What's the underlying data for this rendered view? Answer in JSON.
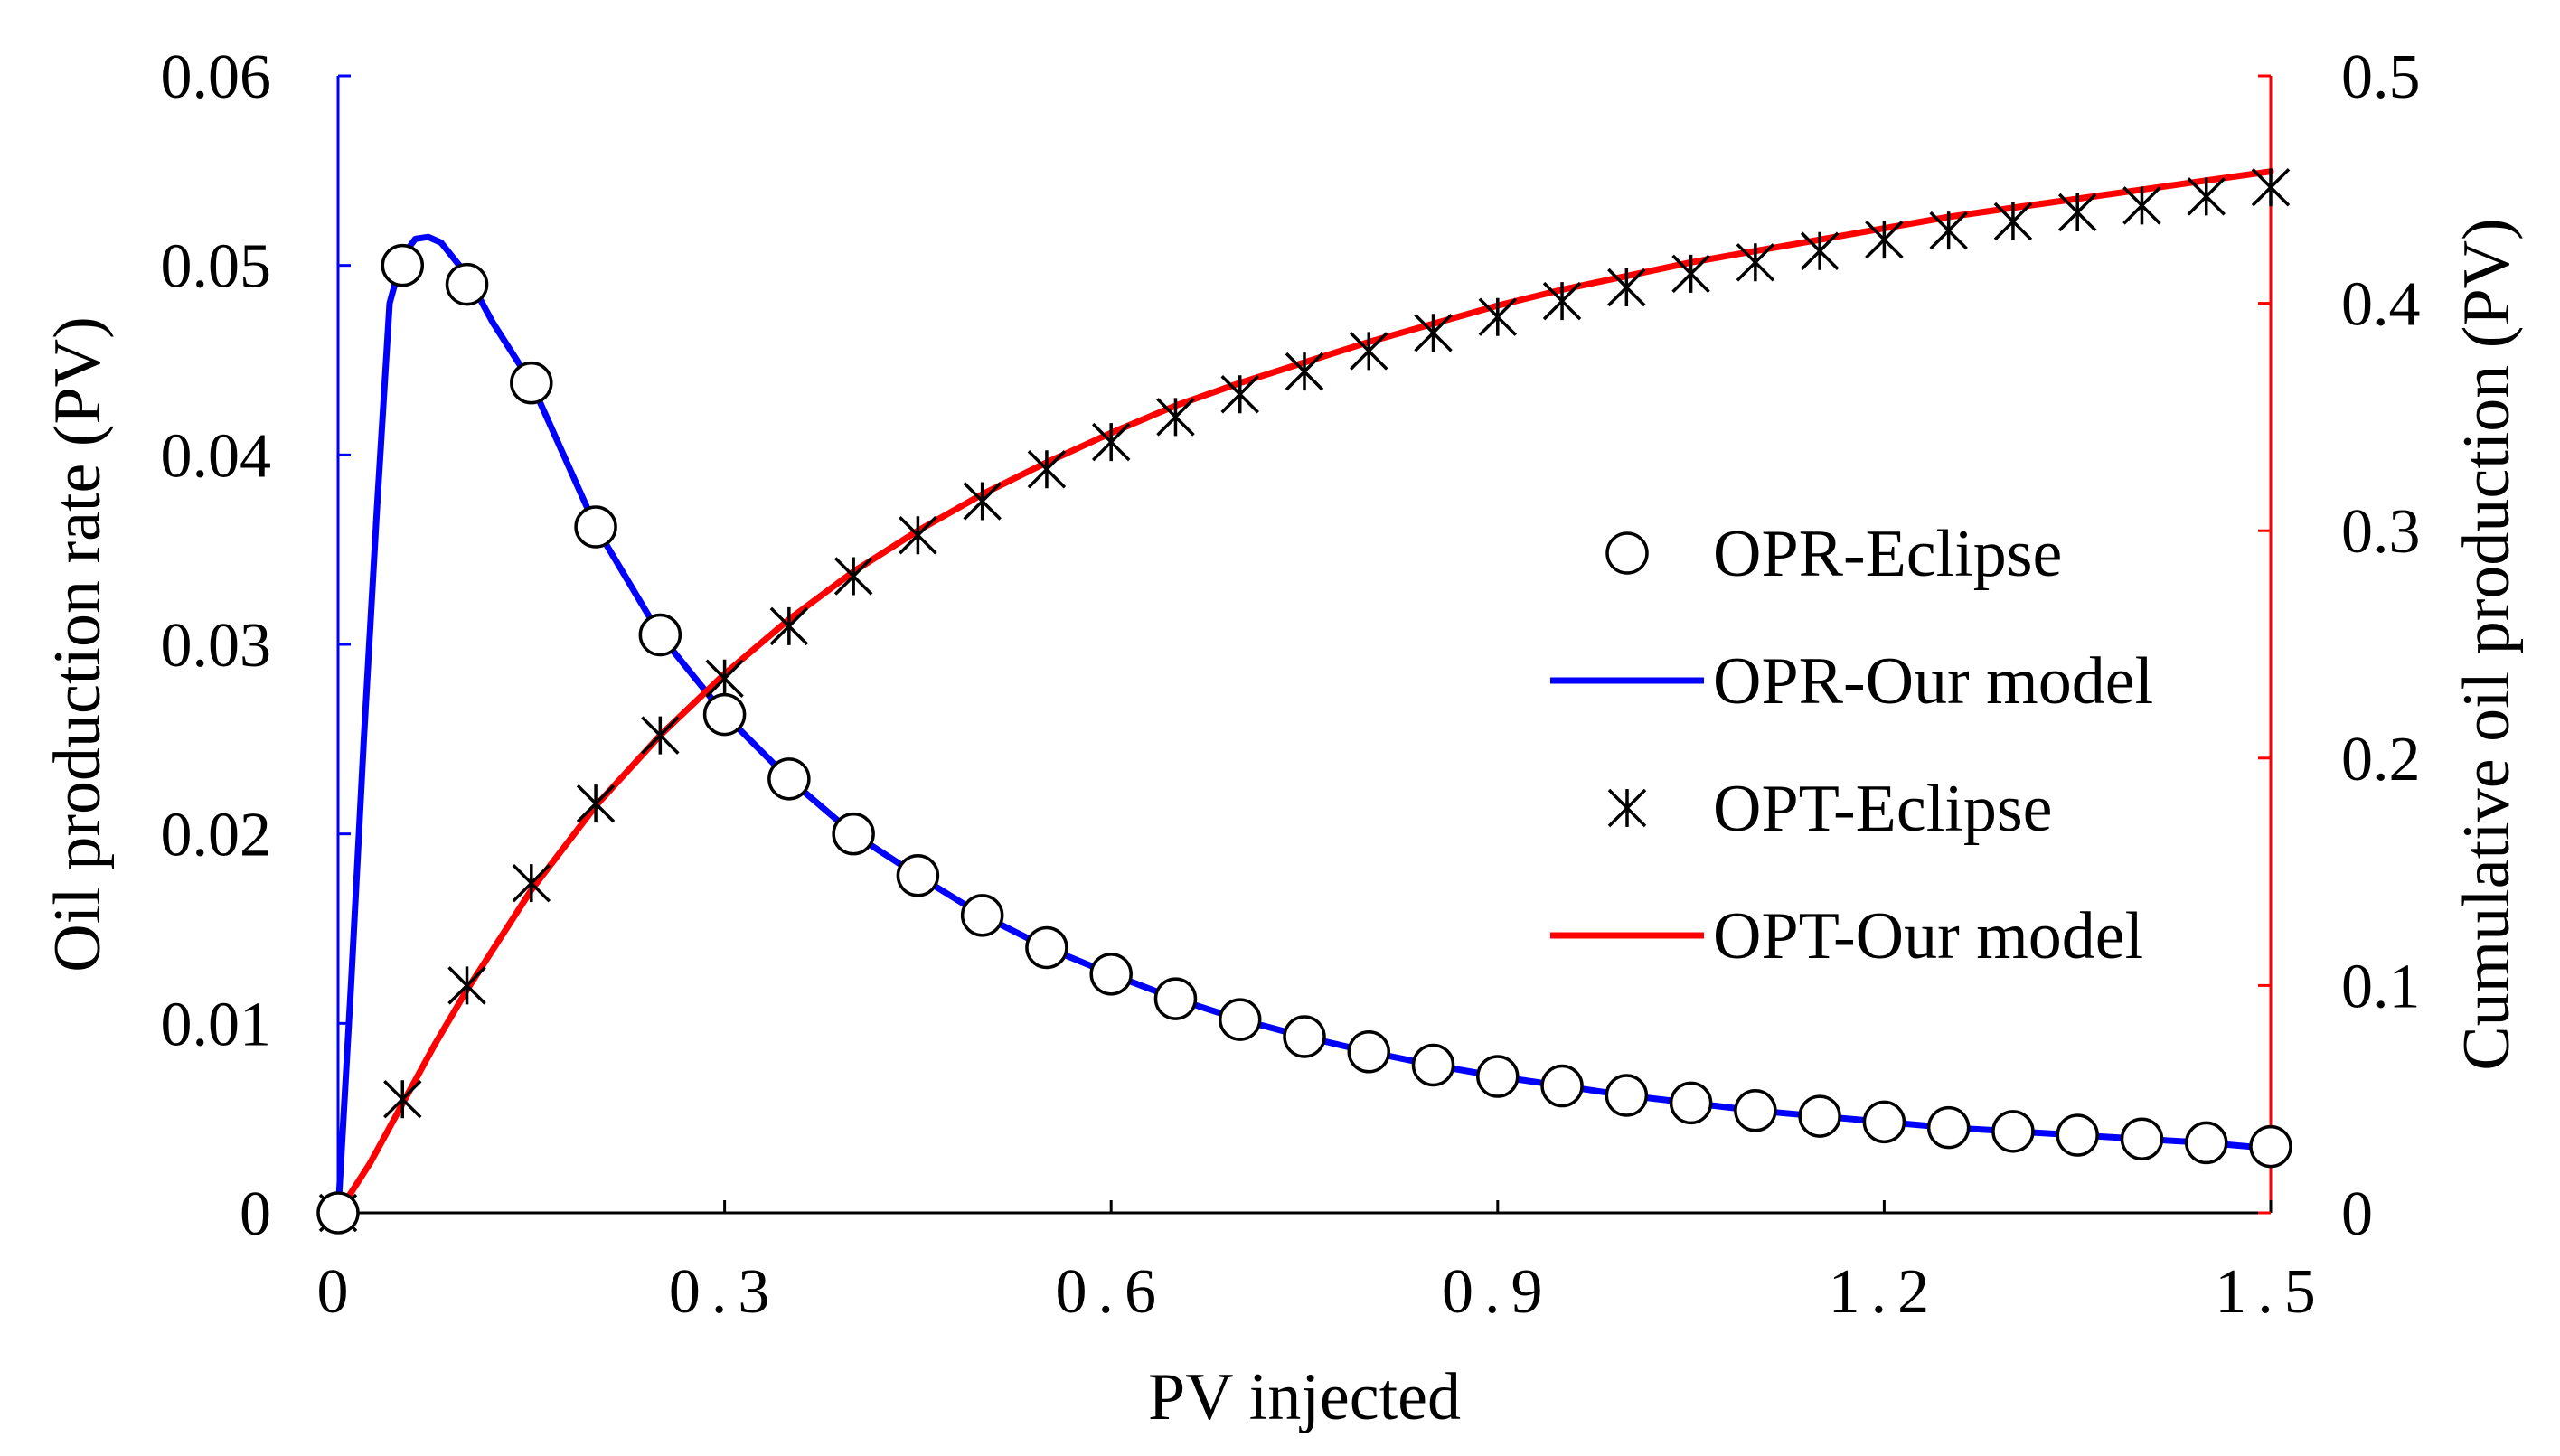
{
  "chart_data": {
    "type": "line",
    "xlabel": "PV injected",
    "ylabel_left": "Oil production rate (PV)",
    "ylabel_right": "Cumulative oil production (PV)",
    "xlim": [
      0,
      1.5
    ],
    "ylim_left": [
      0,
      0.06
    ],
    "ylim_right": [
      0,
      0.5
    ],
    "x_ticks": [
      0,
      0.3,
      0.6,
      0.9,
      1.2,
      1.5
    ],
    "x_tick_labels": [
      "0",
      "0.3",
      "0.6",
      "0.9",
      "1.2",
      "1.5"
    ],
    "y_left_ticks": [
      0,
      0.01,
      0.02,
      0.03,
      0.04,
      0.05,
      0.06
    ],
    "y_left_tick_labels": [
      "0",
      "0.01",
      "0.02",
      "0.03",
      "0.04",
      "0.05",
      "0.06"
    ],
    "y_right_ticks": [
      0,
      0.1,
      0.2,
      0.3,
      0.4,
      0.5
    ],
    "y_right_tick_labels": [
      "0",
      "0.1",
      "0.2",
      "0.3",
      "0.4",
      "0.5"
    ],
    "grid": false,
    "legend_position": "right-center",
    "colors": {
      "left_axis": "#0000ff",
      "right_axis": "#ff0000",
      "opr_line": "#0000ff",
      "opt_line": "#ff0000",
      "markers": "#000000"
    },
    "series": [
      {
        "name": "OPR-Eclipse",
        "axis": "left",
        "style": "circle-markers",
        "x": [
          0,
          0.05,
          0.1,
          0.15,
          0.2,
          0.25,
          0.3,
          0.35,
          0.4,
          0.45,
          0.5,
          0.55,
          0.6,
          0.65,
          0.7,
          0.75,
          0.8,
          0.85,
          0.9,
          0.95,
          1.0,
          1.05,
          1.1,
          1.15,
          1.2,
          1.25,
          1.3,
          1.35,
          1.4,
          1.45,
          1.5
        ],
        "values": [
          0,
          0.05,
          0.049,
          0.0438,
          0.0362,
          0.0305,
          0.0263,
          0.0229,
          0.02,
          0.0178,
          0.0157,
          0.014,
          0.0126,
          0.0113,
          0.0102,
          0.0093,
          0.0085,
          0.0078,
          0.0072,
          0.0067,
          0.0062,
          0.0058,
          0.0054,
          0.0051,
          0.0048,
          0.0045,
          0.0043,
          0.0041,
          0.0039,
          0.0037,
          0.0035
        ]
      },
      {
        "name": "OPR-Our model",
        "axis": "left",
        "style": "line",
        "x": [
          0,
          0.01,
          0.02,
          0.03,
          0.04,
          0.05,
          0.06,
          0.07,
          0.08,
          0.1,
          0.12,
          0.15,
          0.2,
          0.25,
          0.3,
          0.35,
          0.4,
          0.45,
          0.5,
          0.55,
          0.6,
          0.65,
          0.7,
          0.75,
          0.8,
          0.85,
          0.9,
          0.95,
          1.0,
          1.05,
          1.1,
          1.15,
          1.2,
          1.25,
          1.3,
          1.35,
          1.4,
          1.45,
          1.5
        ],
        "values": [
          0,
          0.012,
          0.025,
          0.037,
          0.048,
          0.0505,
          0.0514,
          0.0515,
          0.0512,
          0.0495,
          0.047,
          0.0438,
          0.0362,
          0.0305,
          0.0263,
          0.0229,
          0.02,
          0.0178,
          0.0157,
          0.014,
          0.0126,
          0.0113,
          0.0102,
          0.0093,
          0.0085,
          0.0078,
          0.0072,
          0.0067,
          0.0062,
          0.0058,
          0.0054,
          0.0051,
          0.0048,
          0.0045,
          0.0043,
          0.0041,
          0.0039,
          0.0037,
          0.0034
        ]
      },
      {
        "name": "OPT-Eclipse",
        "axis": "right",
        "style": "asterisk-markers",
        "x": [
          0,
          0.05,
          0.1,
          0.15,
          0.2,
          0.25,
          0.3,
          0.35,
          0.4,
          0.45,
          0.5,
          0.55,
          0.6,
          0.65,
          0.7,
          0.75,
          0.8,
          0.85,
          0.9,
          0.95,
          1.0,
          1.05,
          1.1,
          1.15,
          1.2,
          1.25,
          1.3,
          1.35,
          1.4,
          1.45,
          1.5
        ],
        "values": [
          0,
          0.05,
          0.1,
          0.145,
          0.18,
          0.21,
          0.235,
          0.258,
          0.28,
          0.298,
          0.313,
          0.327,
          0.339,
          0.35,
          0.36,
          0.37,
          0.379,
          0.387,
          0.394,
          0.401,
          0.407,
          0.413,
          0.418,
          0.423,
          0.428,
          0.432,
          0.436,
          0.44,
          0.443,
          0.447,
          0.451
        ]
      },
      {
        "name": "OPT-Our model",
        "axis": "right",
        "style": "line",
        "x": [
          0,
          0.025,
          0.05,
          0.075,
          0.1,
          0.15,
          0.2,
          0.25,
          0.3,
          0.35,
          0.4,
          0.45,
          0.5,
          0.55,
          0.6,
          0.65,
          0.7,
          0.75,
          0.8,
          0.85,
          0.9,
          0.95,
          1.0,
          1.05,
          1.1,
          1.15,
          1.2,
          1.25,
          1.3,
          1.35,
          1.4,
          1.45,
          1.5
        ],
        "values": [
          0,
          0.022,
          0.048,
          0.074,
          0.098,
          0.142,
          0.179,
          0.21,
          0.237,
          0.261,
          0.282,
          0.3,
          0.316,
          0.33,
          0.343,
          0.355,
          0.365,
          0.374,
          0.383,
          0.391,
          0.399,
          0.406,
          0.412,
          0.418,
          0.423,
          0.428,
          0.433,
          0.438,
          0.442,
          0.446,
          0.45,
          0.454,
          0.458
        ]
      }
    ]
  }
}
